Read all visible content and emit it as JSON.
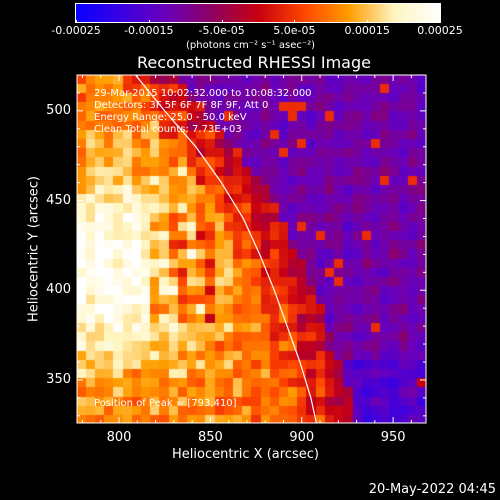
{
  "colorbar": {
    "ticks": [
      "-0.00025",
      "-0.00015",
      "-5.0e-05",
      "5.0e-05",
      "0.00015",
      "0.00025"
    ],
    "tick_values": [
      -0.00025,
      -0.00015,
      -5e-05,
      5e-05,
      0.00015,
      0.00025
    ],
    "range": [
      -0.00025,
      0.00025
    ],
    "units": "(photons cm⁻² s⁻¹ asec⁻²)",
    "colors": [
      "#0a00ff",
      "#3a00e0",
      "#6b00b8",
      "#900060",
      "#c80010",
      "#ff4400",
      "#ff9d00",
      "#fff5c0",
      "#ffffff"
    ]
  },
  "chart_data": {
    "type": "heatmap",
    "title": "Reconstructed RHESSI Image",
    "xlabel": "Heliocentric X (arcsec)",
    "ylabel": "Heliocentric Y (arcsec)",
    "xlim": [
      777,
      968
    ],
    "ylim": [
      326,
      520
    ],
    "xticks": [
      800,
      850,
      900,
      950
    ],
    "yticks": [
      350,
      400,
      450,
      500
    ],
    "info_lines": [
      "29-Mar-2015 10:02:32.000 to 10:08:32.000",
      "Detectors: 3F 5F 6F 7F 8F 9F, Att 0",
      "Energy Range: 25.0 - 50.0 keV",
      "Clean      Total counts: 7.73E+03"
    ],
    "peak_label": "Position of Peak = [793,410]",
    "peak": [
      793,
      410
    ],
    "limb_curve": [
      [
        809,
        520
      ],
      [
        825,
        500
      ],
      [
        842,
        480
      ],
      [
        856,
        460
      ],
      [
        868,
        440
      ],
      [
        877,
        420
      ],
      [
        885,
        400
      ],
      [
        892,
        380
      ],
      [
        899,
        360
      ],
      [
        905,
        340
      ],
      [
        908,
        326
      ]
    ]
  },
  "footer": {
    "date": "20-May-2022 04:45"
  }
}
